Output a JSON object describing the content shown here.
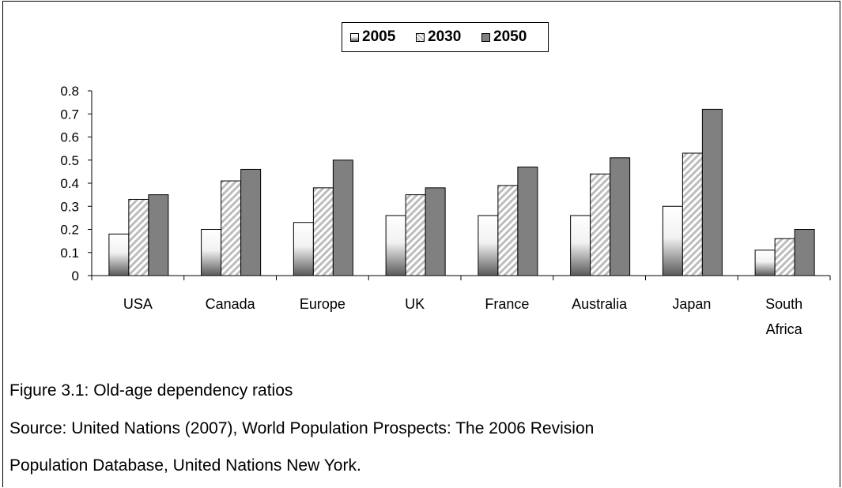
{
  "chart_data": {
    "type": "bar",
    "categories": [
      "USA",
      "Canada",
      "Europe",
      "UK",
      "France",
      "Australia",
      "Japan",
      "South Africa"
    ],
    "category_lines": [
      [
        "USA"
      ],
      [
        "Canada"
      ],
      [
        "Europe"
      ],
      [
        "UK"
      ],
      [
        "France"
      ],
      [
        "Australia"
      ],
      [
        "Japan"
      ],
      [
        "South",
        "Africa"
      ]
    ],
    "series": [
      {
        "name": "2005",
        "values": [
          0.18,
          0.2,
          0.23,
          0.26,
          0.26,
          0.26,
          0.3,
          0.11
        ],
        "fill": "gradient"
      },
      {
        "name": "2030",
        "values": [
          0.33,
          0.41,
          0.38,
          0.35,
          0.39,
          0.44,
          0.53,
          0.16
        ],
        "fill": "hatched"
      },
      {
        "name": "2050",
        "values": [
          0.35,
          0.46,
          0.5,
          0.38,
          0.47,
          0.51,
          0.72,
          0.2
        ],
        "fill": "solid"
      }
    ],
    "ylim": [
      0,
      0.8
    ],
    "yticks": [
      "0",
      "0.1",
      "0.2",
      "0.3",
      "0.4",
      "0.5",
      "0.6",
      "0.7",
      "0.8"
    ],
    "grid": false,
    "legend_position": "top-center",
    "colors": {
      "2005": "#ffffff",
      "2030": "#c8c8c8",
      "2050": "#808080",
      "border": "#000000"
    }
  },
  "caption": {
    "figure": "Figure 3.1: Old-age dependency ratios",
    "source_line1": "Source: United Nations (2007), World Population Prospects: The 2006 Revision",
    "source_line2": "Population Database, United Nations New York."
  }
}
